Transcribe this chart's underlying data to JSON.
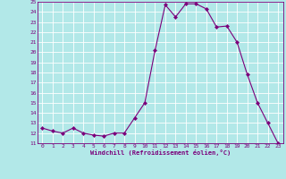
{
  "x": [
    0,
    1,
    2,
    3,
    4,
    5,
    6,
    7,
    8,
    9,
    10,
    11,
    12,
    13,
    14,
    15,
    16,
    17,
    18,
    19,
    20,
    21,
    22,
    23
  ],
  "y": [
    12.5,
    12.2,
    12.0,
    12.5,
    12.0,
    11.8,
    11.7,
    12.0,
    12.0,
    13.5,
    15.0,
    20.2,
    24.7,
    23.5,
    24.8,
    24.8,
    24.3,
    22.5,
    22.6,
    21.0,
    17.8,
    15.0,
    13.0,
    11.0
  ],
  "line_color": "#7b007b",
  "marker_color": "#7b007b",
  "bg_color": "#b2e8e8",
  "grid_color": "#ffffff",
  "xlabel": "Windchill (Refroidissement éolien,°C)",
  "xlabel_color": "#7b007b",
  "tick_color": "#7b007b",
  "ylim": [
    11,
    25
  ],
  "xlim": [
    -0.5,
    23.5
  ],
  "yticks": [
    11,
    12,
    13,
    14,
    15,
    16,
    17,
    18,
    19,
    20,
    21,
    22,
    23,
    24,
    25
  ],
  "xticks": [
    0,
    1,
    2,
    3,
    4,
    5,
    6,
    7,
    8,
    9,
    10,
    11,
    12,
    13,
    14,
    15,
    16,
    17,
    18,
    19,
    20,
    21,
    22,
    23
  ]
}
